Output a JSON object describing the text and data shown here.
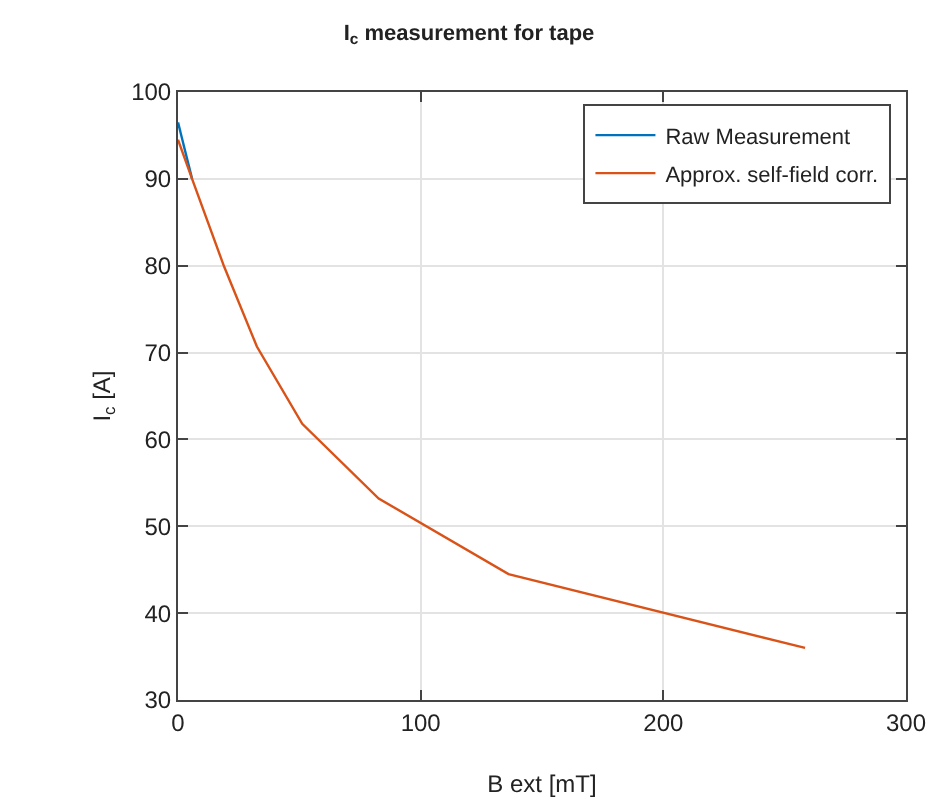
{
  "chart_data": {
    "type": "line",
    "title": "I$_{c}$ measurement for tape",
    "xlabel": "B ext [mT]",
    "ylabel": "I$_{c}$ [A]",
    "series": [
      {
        "name": "Raw Measurement",
        "color": "#0072bd",
        "x": [
          0,
          5.8
        ],
        "values": [
          96.5,
          90
        ]
      },
      {
        "name": "Approx. self-field corr.",
        "color": "#d95319",
        "x": [
          0,
          5.8,
          19,
          32.5,
          51.2,
          82.7,
          136.2,
          258.4
        ],
        "values": [
          94.5,
          90,
          79.9,
          70.7,
          61.8,
          53.2,
          44.5,
          36
        ]
      }
    ],
    "xlim": [
      0,
      300
    ],
    "xticks": [
      0,
      100,
      200,
      300
    ],
    "ylim": [
      30,
      100
    ],
    "yticks": [
      30,
      40,
      50,
      60,
      70,
      80,
      90,
      100
    ],
    "grid": true,
    "legend": "top right"
  }
}
